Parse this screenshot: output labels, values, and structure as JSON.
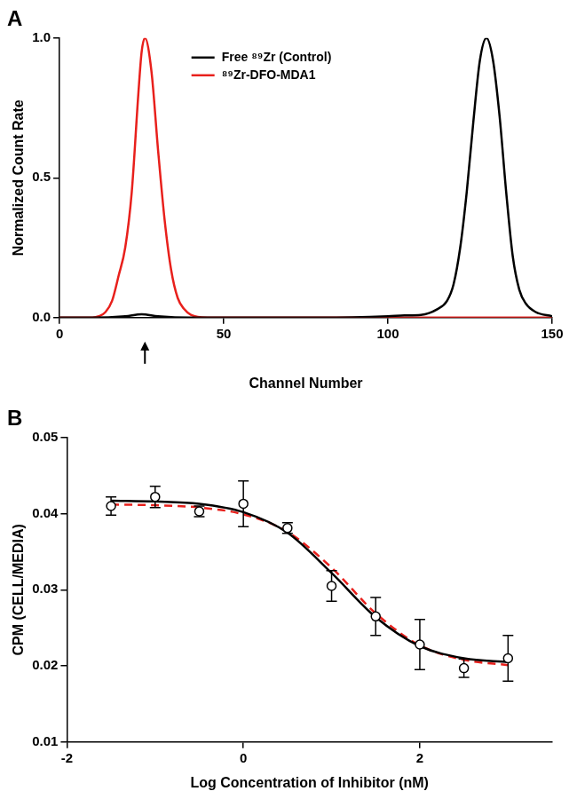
{
  "chart_data": [
    {
      "type": "line",
      "title": "A",
      "x_label": "Channel Number",
      "y_label": "Normalized Count Rate",
      "xlim": [
        0,
        150
      ],
      "xticks": [
        0,
        50,
        100,
        150
      ],
      "ylim": [
        0,
        1
      ],
      "yticks": [
        {
          "value": 0,
          "label": "0.0"
        },
        {
          "value": 0.5,
          "label": "0.5"
        },
        {
          "value": 1,
          "label": "1.0"
        }
      ],
      "grid": false,
      "legend": "upper center",
      "arrow_x": 26,
      "series": [
        {
          "name": "Free ⁸⁹Zr (Control)",
          "color": "#000000",
          "line_style": "solid",
          "x": [
            0,
            10,
            20,
            25,
            30,
            40,
            60,
            80,
            100,
            105,
            110,
            115,
            118,
            120,
            122,
            124,
            126,
            128,
            130,
            132,
            134,
            136,
            138,
            140,
            142,
            145,
            150
          ],
          "values": [
            0,
            0,
            0.005,
            0.012,
            0.005,
            0,
            0,
            0,
            0.005,
            0.008,
            0.01,
            0.03,
            0.06,
            0.12,
            0.25,
            0.45,
            0.7,
            0.92,
            1.0,
            0.92,
            0.72,
            0.45,
            0.22,
            0.1,
            0.05,
            0.02,
            0.005
          ]
        },
        {
          "name": "⁸⁹Zr-DFO-MDA1",
          "color": "#e8201c",
          "line_style": "solid",
          "x": [
            0,
            5,
            10,
            12,
            14,
            16,
            18,
            20,
            22,
            24,
            25,
            26,
            28,
            30,
            32,
            34,
            36,
            38,
            40,
            45,
            50,
            60,
            80,
            100,
            120,
            130,
            140,
            150
          ],
          "values": [
            0,
            0,
            0,
            0.005,
            0.02,
            0.06,
            0.15,
            0.25,
            0.45,
            0.8,
            0.95,
            1.0,
            0.88,
            0.6,
            0.35,
            0.17,
            0.07,
            0.03,
            0.01,
            0,
            0,
            0,
            0,
            0,
            0,
            0,
            0,
            0
          ]
        }
      ]
    },
    {
      "type": "scatter",
      "title": "B",
      "x_label": "Log Concentration of Inhibitor (nM)",
      "y_label": "CPM (CELL/MEDIA)",
      "xlim": [
        -2,
        3.5
      ],
      "xticks": [
        -2,
        0,
        2
      ],
      "ylim": [
        0.01,
        0.05
      ],
      "yticks": [
        0.01,
        0.02,
        0.03,
        0.04,
        0.05
      ],
      "grid": false,
      "series": [
        {
          "type": "line",
          "color": "#000000",
          "line_style": "solid",
          "x": [
            -1.5,
            -1,
            -0.5,
            0,
            0.5,
            1,
            1.5,
            2,
            2.5,
            3
          ],
          "values": [
            0.0417,
            0.0416,
            0.0413,
            0.0402,
            0.0375,
            0.0322,
            0.0264,
            0.0226,
            0.021,
            0.0205
          ]
        },
        {
          "type": "line",
          "color": "#e8201c",
          "line_style": "dashed",
          "x": [
            -1.5,
            -1,
            -0.5,
            0,
            0.5,
            1,
            1.5,
            2,
            2.5,
            3
          ],
          "values": [
            0.0412,
            0.0411,
            0.0408,
            0.0399,
            0.0376,
            0.0329,
            0.0269,
            0.0227,
            0.0208,
            0.0201
          ]
        },
        {
          "type": "scatter",
          "color": "#000000",
          "marker": "circle",
          "x": [
            -1.5,
            -1,
            -0.5,
            0,
            0.5,
            1,
            1.5,
            2,
            2.5,
            3
          ],
          "values": [
            0.041,
            0.0422,
            0.0403,
            0.0413,
            0.0381,
            0.0305,
            0.0265,
            0.0228,
            0.0197,
            0.021
          ],
          "errors": [
            0.0012,
            0.0014,
            0.0007,
            0.003,
            0.0007,
            0.002,
            0.0025,
            0.0033,
            0.0012,
            0.003
          ]
        }
      ]
    }
  ]
}
